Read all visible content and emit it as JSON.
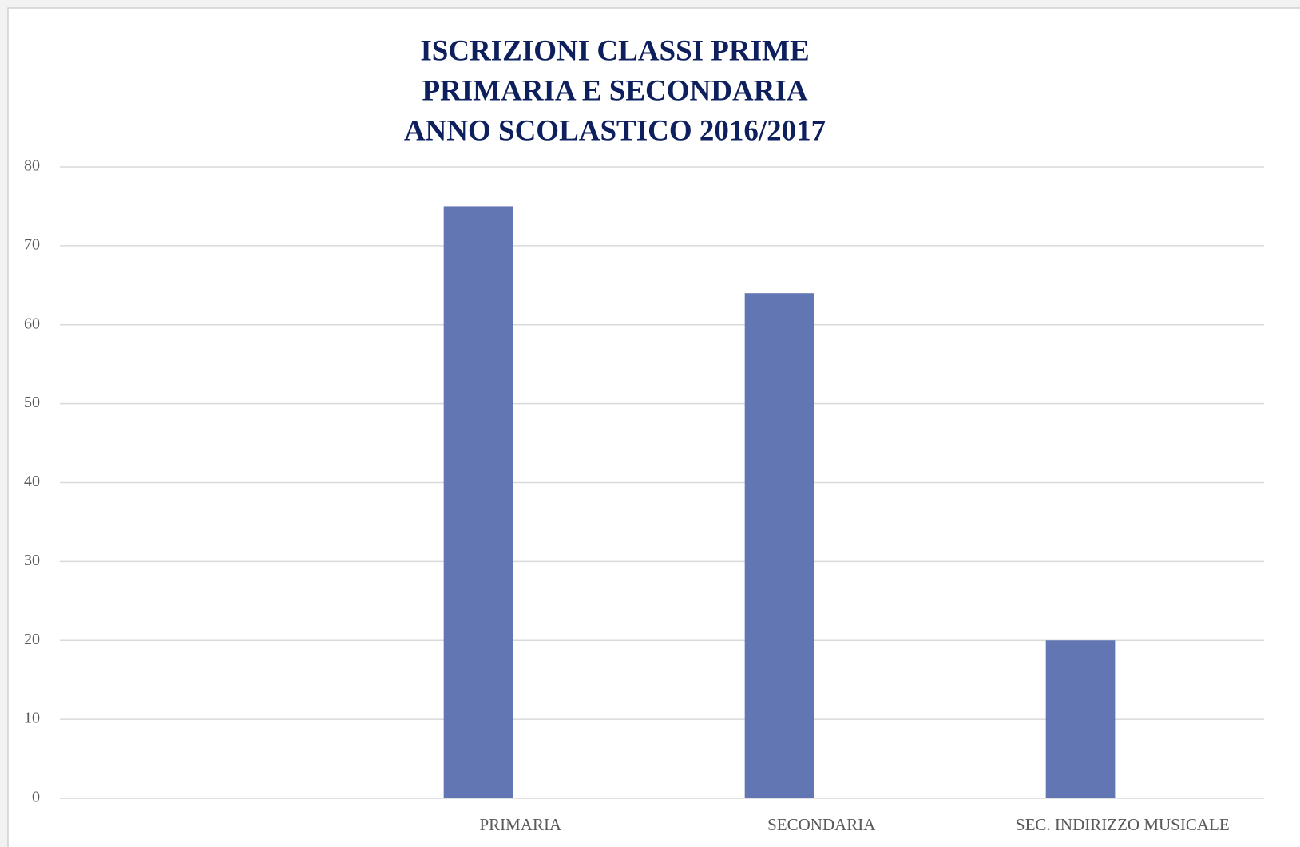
{
  "chart_data": {
    "type": "bar",
    "title": [
      "ISCRIZIONI CLASSI PRIME",
      "PRIMARIA E SECONDARIA",
      "ANNO SCOLASTICO 2016/2017"
    ],
    "categories": [
      null,
      "PRIMARIA",
      "SECONDARIA",
      "SEC. INDIRIZZO MUSICALE"
    ],
    "values": [
      null,
      75,
      64,
      20
    ],
    "color": "#6276b4",
    "ylim": [
      0,
      80
    ],
    "yticks": [
      0,
      10,
      20,
      30,
      40,
      50,
      60,
      70,
      80
    ],
    "grid": true
  }
}
